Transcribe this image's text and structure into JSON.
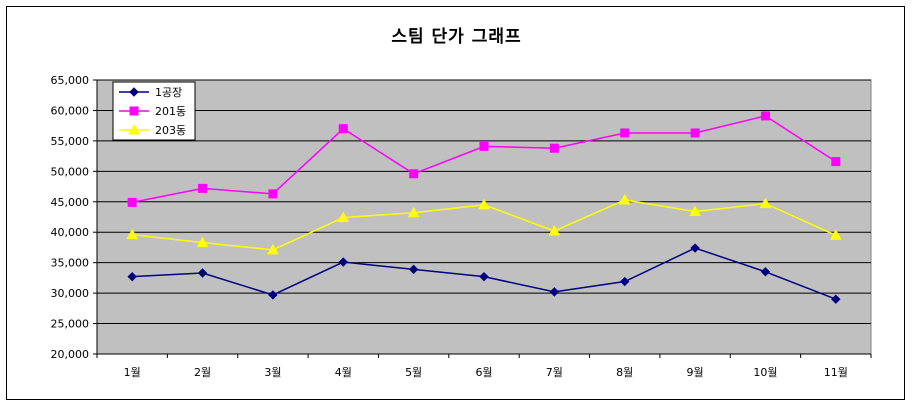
{
  "chart_data": {
    "type": "line",
    "title": "스팀 단가 그래프",
    "categories": [
      "1월",
      "2월",
      "3월",
      "4월",
      "5월",
      "6월",
      "7월",
      "8월",
      "9월",
      "10월",
      "11월"
    ],
    "y_ticks": [
      "20,000",
      "25,000",
      "30,000",
      "35,000",
      "40,000",
      "45,000",
      "50,000",
      "55,000",
      "60,000",
      "65,000"
    ],
    "ylim": [
      20000,
      65000
    ],
    "grid": true,
    "legend_position": "top-left",
    "series": [
      {
        "name": "1공장",
        "color": "#000080",
        "marker": "diamond",
        "values": [
          32700,
          33300,
          29700,
          35100,
          33900,
          32700,
          30200,
          31900,
          37400,
          33500,
          29000
        ]
      },
      {
        "name": "201동",
        "color": "#FF00FF",
        "marker": "square",
        "values": [
          44900,
          47200,
          46300,
          57000,
          49600,
          54100,
          53800,
          56300,
          56300,
          59100,
          51600
        ]
      },
      {
        "name": "203동",
        "color": "#FFFF00",
        "marker": "triangle",
        "values": [
          39600,
          38300,
          37100,
          42400,
          43200,
          44500,
          40200,
          45300,
          43400,
          44700,
          39500
        ]
      }
    ]
  }
}
